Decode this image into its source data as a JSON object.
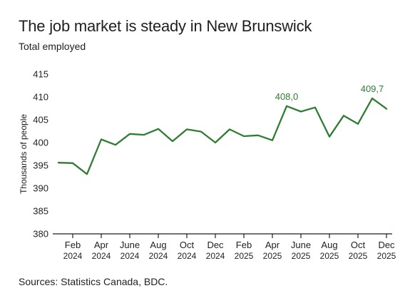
{
  "header": {
    "title": "The job market is steady in New Brunswick",
    "subtitle": "Total employed"
  },
  "footer": {
    "source": "Sources: Statistics Canada, BDC."
  },
  "colors": {
    "line": "#2e7d32",
    "axis": "#1f1f1f",
    "text": "#1f1f1f",
    "background": "#ffffff"
  },
  "chart_data": {
    "type": "line",
    "title": "The job market is steady in New Brunswick",
    "subtitle": "Total employed",
    "xlabel": "",
    "ylabel": "Thousands of people",
    "ylim": [
      380,
      415
    ],
    "yticks": [
      380,
      385,
      390,
      395,
      400,
      405,
      410,
      415
    ],
    "grid": false,
    "x_ticks": [
      {
        "month": "Feb",
        "year": "2024"
      },
      {
        "month": "Apr",
        "year": "2024"
      },
      {
        "month": "June",
        "year": "2024"
      },
      {
        "month": "Aug",
        "year": "2024"
      },
      {
        "month": "Oct",
        "year": "2024"
      },
      {
        "month": "Dec",
        "year": "2024"
      },
      {
        "month": "Feb",
        "year": "2025"
      },
      {
        "month": "Apr",
        "year": "2025"
      },
      {
        "month": "June",
        "year": "2025"
      },
      {
        "month": "Aug",
        "year": "2025"
      },
      {
        "month": "Oct",
        "year": "2025"
      },
      {
        "month": "Dec",
        "year": "2025"
      }
    ],
    "x": [
      "Jan 2024",
      "Feb 2024",
      "Mar 2024",
      "Apr 2024",
      "May 2024",
      "Jun 2024",
      "Jul 2024",
      "Aug 2024",
      "Sep 2024",
      "Oct 2024",
      "Nov 2024",
      "Dec 2024",
      "Jan 2025",
      "Feb 2025",
      "Mar 2025",
      "Apr 2025",
      "May 2025",
      "Jun 2025",
      "Jul 2025",
      "Aug 2025",
      "Sep 2025",
      "Oct 2025",
      "Nov 2025",
      "Dec 2025"
    ],
    "series": [
      {
        "values": [
          395.6,
          395.5,
          393.1,
          400.7,
          399.5,
          401.9,
          401.7,
          403.0,
          400.3,
          402.9,
          402.4,
          400.0,
          402.9,
          401.4,
          401.6,
          400.5,
          408.0,
          406.8,
          407.7,
          401.3,
          405.9,
          404.1,
          409.7,
          407.4
        ]
      }
    ],
    "annotations": [
      {
        "index": 16,
        "text": "408,0"
      },
      {
        "index": 22,
        "text": "409,7"
      }
    ]
  }
}
